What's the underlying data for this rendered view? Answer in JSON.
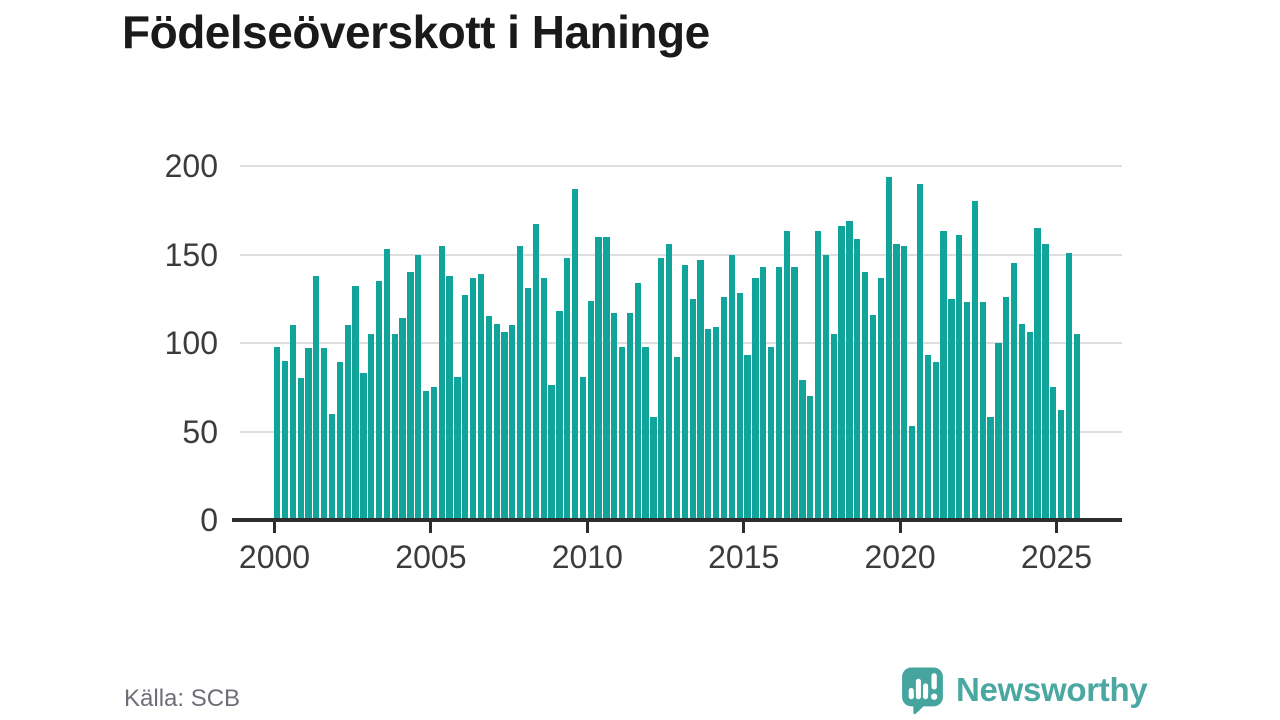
{
  "title": "Födelseöverskott i Haninge",
  "source": {
    "text": "Källa: SCB"
  },
  "branding": {
    "name": "Newsworthy",
    "icon": "speech-bubble-bar-chart-exclamation-icon",
    "color": "#4ba7a1"
  },
  "colors": {
    "bar": "#10a49a",
    "grid": "#dedede",
    "axis": "#2d2d2d",
    "axis_text": "#3c3c3c",
    "title_text": "#1a1a1a",
    "source_text": "#6e6e78"
  },
  "chart_data": {
    "type": "bar",
    "title": "Födelseöverskott i Haninge",
    "frequency": "quarterly",
    "series_start": {
      "year": 2000,
      "quarter": 1
    },
    "series_end": {
      "year": 2025,
      "quarter": 3
    },
    "x_axis": {
      "tick_labels": [
        "2000",
        "2005",
        "2010",
        "2015",
        "2020",
        "2025"
      ]
    },
    "y_axis": {
      "ticks": [
        0,
        50,
        100,
        150,
        200
      ],
      "range": [
        0,
        200
      ],
      "gridlines": true
    },
    "legend": "none",
    "values": [
      98,
      90,
      110,
      80,
      97,
      138,
      97,
      60,
      89,
      110,
      132,
      83,
      105,
      135,
      153,
      105,
      114,
      140,
      150,
      73,
      75,
      155,
      138,
      81,
      127,
      137,
      139,
      115,
      111,
      106,
      110,
      155,
      131,
      167,
      137,
      76,
      118,
      148,
      187,
      81,
      124,
      160,
      160,
      117,
      98,
      117,
      134,
      98,
      58,
      148,
      156,
      92,
      144,
      125,
      147,
      108,
      109,
      126,
      150,
      128,
      93,
      137,
      143,
      98,
      143,
      163,
      143,
      79,
      70,
      163,
      150,
      105,
      166,
      169,
      159,
      140,
      116,
      137,
      194,
      156,
      155,
      53,
      190,
      93,
      89,
      163,
      125,
      161,
      123,
      180,
      123,
      58,
      100,
      126,
      145,
      111,
      106,
      165,
      156,
      75,
      62,
      151,
      105
    ]
  }
}
